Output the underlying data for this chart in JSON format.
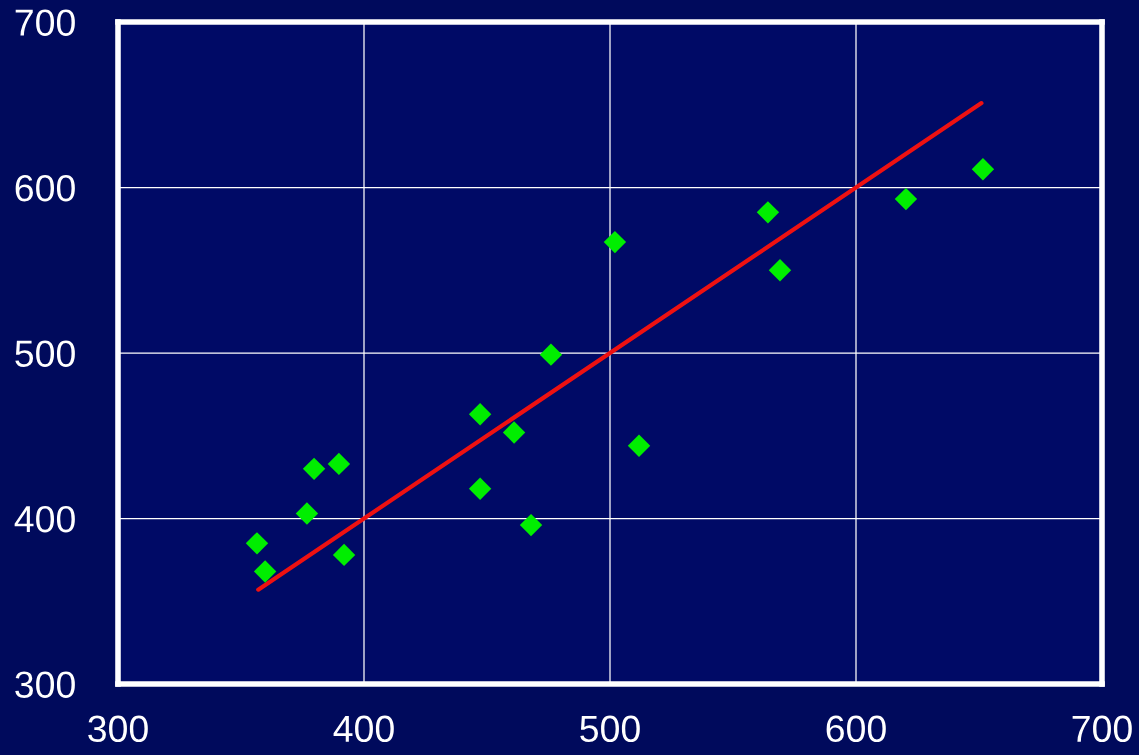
{
  "chart_data": {
    "type": "scatter",
    "xlim": [
      300,
      700
    ],
    "ylim": [
      300,
      700
    ],
    "xticks": [
      300,
      400,
      500,
      600,
      700
    ],
    "yticks": [
      300,
      400,
      500,
      600,
      700
    ],
    "grid": true,
    "marker": "diamond",
    "series": [
      {
        "color": "#00ee00",
        "x": [
          356.5,
          359.8,
          376.8,
          379.7,
          389.8,
          391.9,
          447.2,
          447.2,
          461.0,
          467.9,
          476.0,
          502.0,
          511.8,
          564.2,
          569.1,
          620.3,
          651.6
        ],
        "values": [
          385,
          368,
          403,
          430,
          433,
          378,
          463,
          418,
          452,
          396,
          499,
          567,
          444,
          585,
          550,
          593,
          611
        ]
      },
      {
        "type": "line",
        "color": "#ee1111",
        "line_style": "solid",
        "marker": "none",
        "x": [
          357,
          651
        ],
        "values": [
          357,
          651
        ]
      }
    ]
  }
}
